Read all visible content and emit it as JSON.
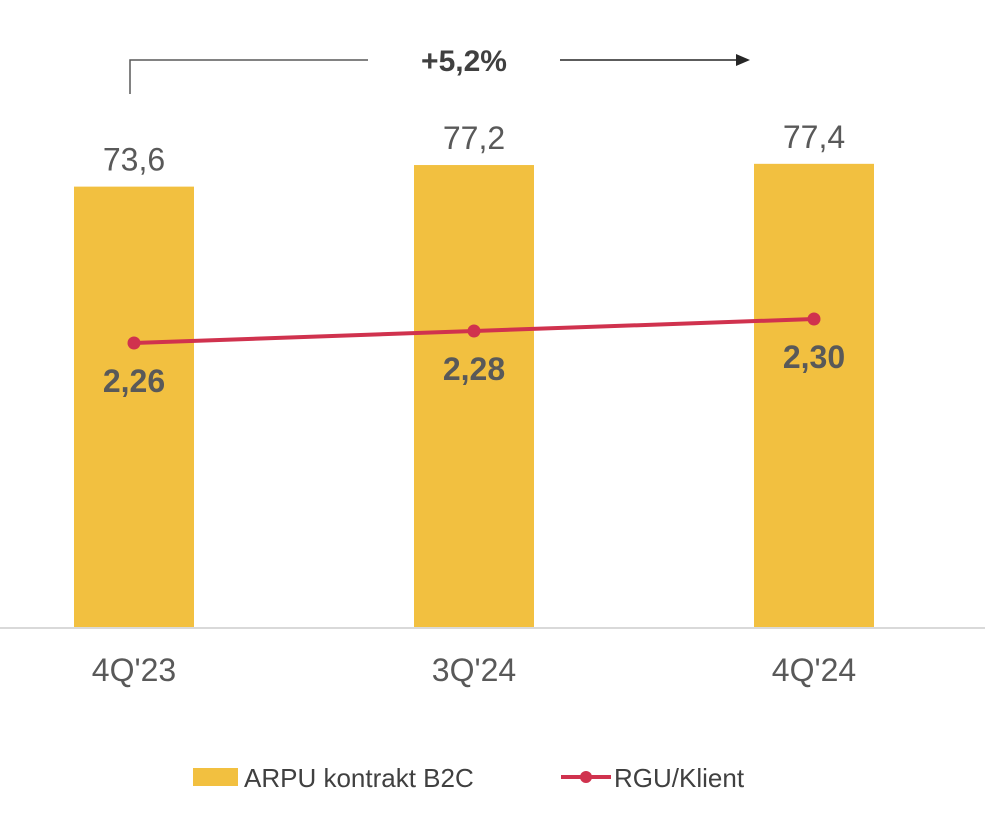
{
  "chart_data": {
    "type": "bar",
    "categories": [
      "4Q'23",
      "3Q'24",
      "4Q'24"
    ],
    "series": [
      {
        "name": "ARPU kontrakt B2C",
        "type": "bar",
        "values": [
          73.6,
          77.2,
          77.4
        ],
        "labels": [
          "73,6",
          "77,2",
          "77,4"
        ],
        "color": "#F2C040"
      },
      {
        "name": "RGU/Klient",
        "type": "line",
        "values": [
          2.26,
          2.28,
          2.3
        ],
        "labels": [
          "2,26",
          "2,28",
          "2,30"
        ],
        "color": "#D0324E"
      }
    ],
    "annotation": {
      "text": "+5,2%",
      "from": "4Q'23",
      "to": "4Q'24"
    },
    "ylim_bar": [
      0,
      85
    ],
    "legend": "bottom",
    "grid": false,
    "title": "",
    "xlabel": "",
    "ylabel": ""
  }
}
